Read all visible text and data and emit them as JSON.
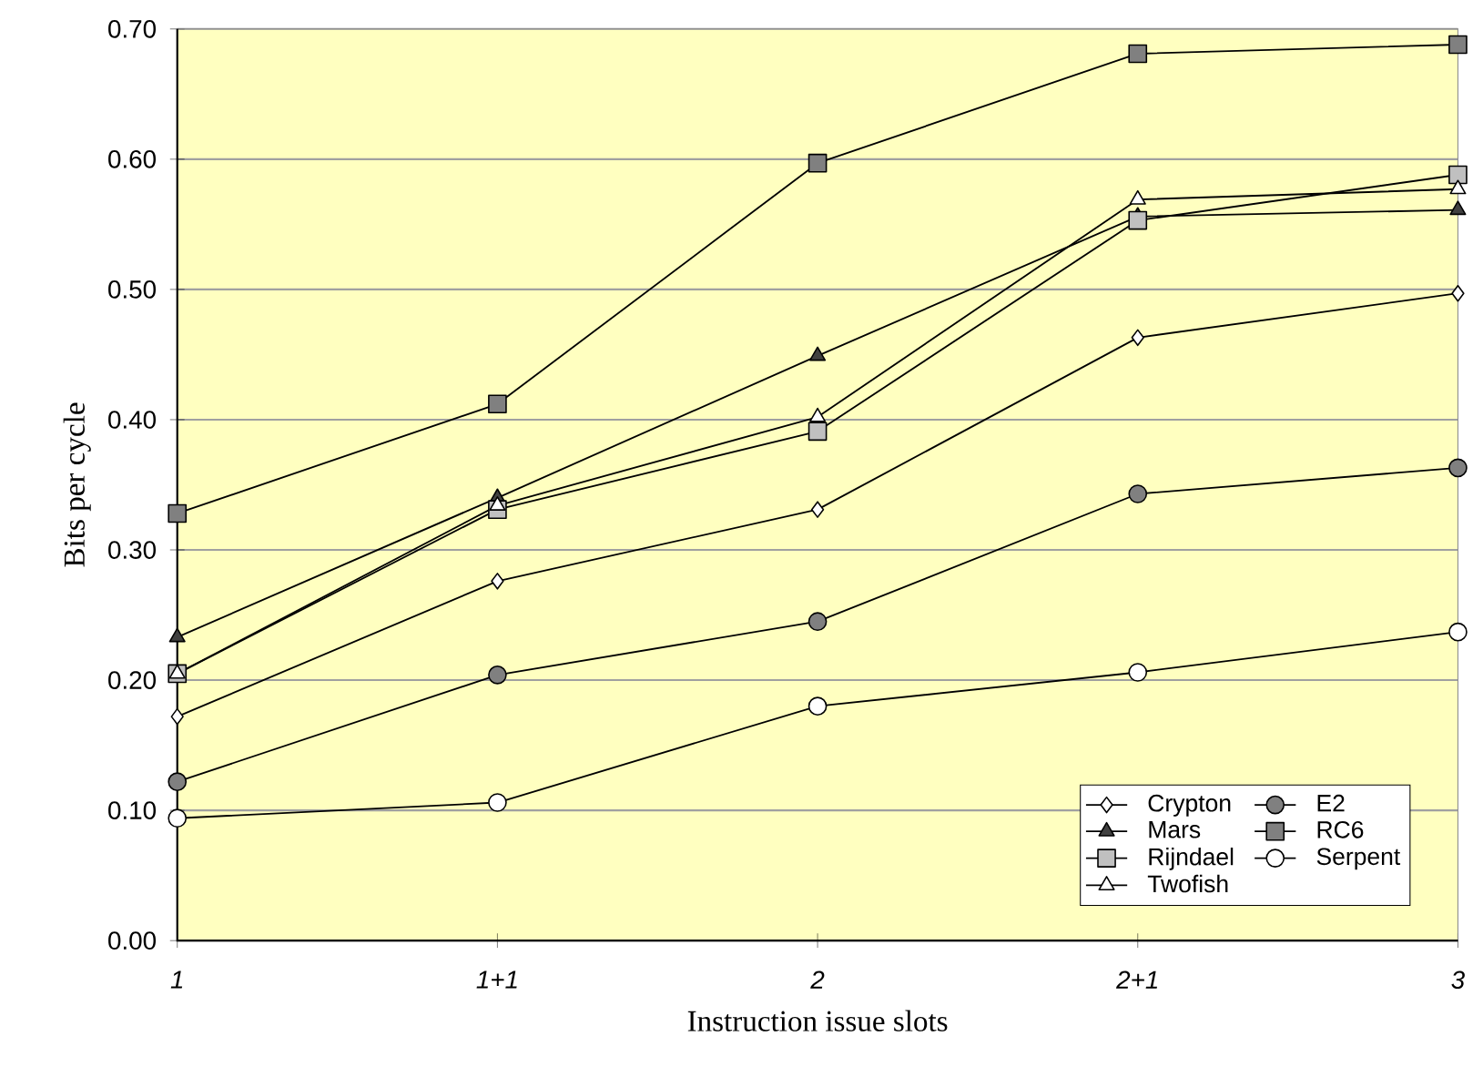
{
  "chart_data": {
    "type": "line",
    "xlabel": "Instruction issue slots",
    "ylabel": "Bits per cycle",
    "categories": [
      "1",
      "1+1",
      "2",
      "2+1",
      "3"
    ],
    "ylim": [
      0,
      0.7
    ],
    "yticks": [
      {
        "value": 0,
        "label": "0.00"
      },
      {
        "value": 0.1,
        "label": "0.10"
      },
      {
        "value": 0.2,
        "label": "0.20"
      },
      {
        "value": 0.3,
        "label": "0.30"
      },
      {
        "value": 0.4,
        "label": "0.40"
      },
      {
        "value": 0.5,
        "label": "0.50"
      },
      {
        "value": 0.6,
        "label": "0.60"
      },
      {
        "value": 0.7,
        "label": "0.70"
      }
    ],
    "grid": "y",
    "legend": "bottom right",
    "line_style": "solid",
    "series": [
      {
        "name": "Crypton",
        "color": "#ffffff",
        "marker": "diamond",
        "values": [
          0.172,
          0.276,
          0.331,
          0.463,
          0.497
        ]
      },
      {
        "name": "E2",
        "color": "#808080",
        "marker": "circle",
        "values": [
          0.122,
          0.204,
          0.245,
          0.343,
          0.363
        ]
      },
      {
        "name": "Mars",
        "color": "#404040",
        "marker": "triangle",
        "values": [
          0.233,
          0.34,
          0.449,
          0.556,
          0.561
        ]
      },
      {
        "name": "RC6",
        "color": "#808080",
        "marker": "square",
        "values": [
          0.328,
          0.412,
          0.597,
          0.681,
          0.688
        ]
      },
      {
        "name": "Rijndael",
        "color": "#c0c0c0",
        "marker": "square",
        "values": [
          0.205,
          0.331,
          0.391,
          0.553,
          0.588
        ]
      },
      {
        "name": "Serpent",
        "color": "#ffffff",
        "marker": "circle",
        "values": [
          0.094,
          0.106,
          0.18,
          0.206,
          0.237
        ]
      },
      {
        "name": "Twofish",
        "color": "#ffffff",
        "marker": "triangle",
        "values": [
          0.205,
          0.334,
          0.402,
          0.569,
          0.577
        ]
      }
    ]
  }
}
